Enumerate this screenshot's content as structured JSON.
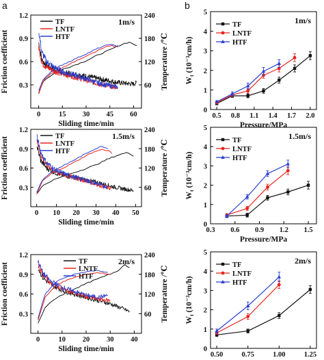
{
  "figure": {
    "panel_letters": [
      "a",
      "b"
    ]
  },
  "chart_data": [
    {
      "id": "a1",
      "type": "line",
      "speed_label": "1m/s",
      "xlabel": "Sliding time/min",
      "ylabel_left": "Friction coefficient",
      "ylabel_right": "Temperature /℃",
      "xlim": [
        -5,
        65
      ],
      "ylim_left": [
        0.0,
        1.2
      ],
      "ylim_right": [
        0,
        240
      ],
      "xticks": [
        0,
        15,
        30,
        45,
        60
      ],
      "yticks_left": [
        "0.3",
        "0.6",
        "0.9",
        "1.2"
      ],
      "yticks_left_values": [
        0.3,
        0.6,
        0.9,
        1.2
      ],
      "yticks_right": [
        "60",
        "120",
        "180",
        "240"
      ],
      "yticks_right_values": [
        60,
        120,
        180,
        240
      ],
      "legend": [
        "TF",
        "LNTF",
        "HTF"
      ],
      "legend_position": "top-left",
      "series": [
        {
          "name": "TF",
          "color": "#111111",
          "end": 62,
          "friction_x": [
            0,
            2,
            5,
            10,
            15,
            20,
            25,
            30,
            35,
            40,
            45,
            50,
            55,
            60,
            62
          ],
          "friction_y": [
            0.85,
            0.62,
            0.55,
            0.5,
            0.46,
            0.44,
            0.43,
            0.41,
            0.39,
            0.37,
            0.35,
            0.33,
            0.32,
            0.31,
            0.33
          ],
          "temp_x": [
            0,
            3,
            8,
            15,
            22,
            30,
            38,
            45,
            50,
            55,
            58,
            62
          ],
          "temp_y": [
            40,
            70,
            85,
            100,
            110,
            122,
            138,
            150,
            160,
            168,
            170,
            160
          ]
        },
        {
          "name": "LNTF",
          "color": "#e8231e",
          "end": 49,
          "friction_x": [
            0,
            2,
            5,
            10,
            15,
            20,
            25,
            30,
            35,
            40,
            45,
            49
          ],
          "friction_y": [
            0.8,
            0.58,
            0.53,
            0.48,
            0.44,
            0.42,
            0.39,
            0.36,
            0.33,
            0.3,
            0.28,
            0.27
          ],
          "temp_x": [
            0,
            3,
            8,
            15,
            22,
            30,
            38,
            45,
            49
          ],
          "temp_y": [
            35,
            72,
            90,
            105,
            118,
            135,
            150,
            162,
            158
          ]
        },
        {
          "name": "HTF",
          "color": "#2b3fd1",
          "end": 50,
          "friction_x": [
            0,
            2,
            5,
            10,
            15,
            20,
            25,
            30,
            35,
            40,
            45,
            50
          ],
          "friction_y": [
            1.0,
            0.72,
            0.6,
            0.52,
            0.47,
            0.44,
            0.41,
            0.38,
            0.34,
            0.31,
            0.29,
            0.27
          ],
          "temp_x": [
            0,
            3,
            8,
            15,
            22,
            30,
            38,
            45,
            50
          ],
          "temp_y": [
            45,
            75,
            95,
            112,
            125,
            140,
            155,
            165,
            158
          ]
        }
      ]
    },
    {
      "id": "a2",
      "type": "line",
      "speed_label": "1.5m/s",
      "xlabel": "Sliding time/min",
      "ylabel_left": "Friction coefficient",
      "ylabel_right": "Temperature /℃",
      "xlim": [
        -3,
        53
      ],
      "ylim_left": [
        0.0,
        1.2
      ],
      "ylim_right": [
        0,
        240
      ],
      "xticks": [
        0,
        10,
        20,
        30,
        40,
        50
      ],
      "yticks_left": [
        "0.3",
        "0.6",
        "0.9",
        "1.2"
      ],
      "yticks_left_values": [
        0.3,
        0.6,
        0.9,
        1.2
      ],
      "yticks_right": [
        "60",
        "120",
        "180",
        "240"
      ],
      "yticks_right_values": [
        60,
        120,
        180,
        240
      ],
      "legend": [
        "TF",
        "LNTF",
        "HTF"
      ],
      "legend_position": "top-left",
      "series": [
        {
          "name": "TF",
          "color": "#111111",
          "end": 49,
          "friction_x": [
            0,
            2,
            5,
            10,
            15,
            20,
            25,
            30,
            35,
            40,
            45,
            49
          ],
          "friction_y": [
            0.95,
            0.72,
            0.6,
            0.52,
            0.48,
            0.45,
            0.41,
            0.38,
            0.34,
            0.3,
            0.27,
            0.25
          ],
          "temp_x": [
            0,
            3,
            8,
            15,
            22,
            30,
            36,
            42,
            46,
            49
          ],
          "temp_y": [
            40,
            65,
            82,
            98,
            112,
            130,
            148,
            162,
            168,
            158
          ]
        },
        {
          "name": "LNTF",
          "color": "#e8231e",
          "end": 38,
          "friction_x": [
            0,
            2,
            5,
            10,
            15,
            20,
            25,
            30,
            35,
            38
          ],
          "friction_y": [
            1.05,
            0.8,
            0.65,
            0.54,
            0.48,
            0.44,
            0.4,
            0.35,
            0.3,
            0.28
          ],
          "temp_x": [
            0,
            3,
            8,
            15,
            22,
            28,
            33,
            37,
            38
          ],
          "temp_y": [
            40,
            80,
            105,
            125,
            148,
            168,
            178,
            172,
            165
          ]
        },
        {
          "name": "HTF",
          "color": "#2b3fd1",
          "end": 36,
          "friction_x": [
            0,
            2,
            5,
            10,
            15,
            20,
            25,
            30,
            36
          ],
          "friction_y": [
            1.1,
            0.85,
            0.68,
            0.56,
            0.5,
            0.45,
            0.41,
            0.36,
            0.3
          ],
          "temp_x": [
            0,
            3,
            8,
            15,
            22,
            28,
            33,
            36
          ],
          "temp_y": [
            45,
            85,
            110,
            132,
            155,
            175,
            188,
            180
          ]
        }
      ]
    },
    {
      "id": "a3",
      "type": "line",
      "speed_label": "2m/s",
      "xlabel": "Sliding time/min",
      "ylabel_left": "Friction coefficient",
      "ylabel_right": "Temperature /℃",
      "xlim": [
        -3,
        43
      ],
      "ylim_left": [
        0.0,
        1.2
      ],
      "ylim_right": [
        0,
        240
      ],
      "xticks": [
        0,
        10,
        20,
        30,
        40
      ],
      "yticks_left": [
        "0.3",
        "0.6",
        "0.9",
        "1.2"
      ],
      "yticks_left_values": [
        0.3,
        0.6,
        0.9,
        1.2
      ],
      "yticks_right": [
        "60",
        "120",
        "180",
        "240"
      ],
      "yticks_right_values": [
        60,
        120,
        180,
        240
      ],
      "legend": [
        "TF",
        "LNTF",
        "HTF"
      ],
      "legend_position": "top-center",
      "series": [
        {
          "name": "TF",
          "color": "#111111",
          "end": 38,
          "friction_x": [
            0,
            2,
            5,
            10,
            15,
            20,
            25,
            30,
            35,
            38
          ],
          "friction_y": [
            1.0,
            0.85,
            0.75,
            0.66,
            0.6,
            0.55,
            0.5,
            0.45,
            0.38,
            0.33
          ],
          "temp_x": [
            0,
            3,
            8,
            15,
            22,
            28,
            33,
            36,
            38
          ],
          "temp_y": [
            30,
            80,
            110,
            135,
            158,
            175,
            190,
            210,
            200
          ]
        },
        {
          "name": "LNTF",
          "color": "#e8231e",
          "end": 30,
          "friction_x": [
            0,
            2,
            5,
            10,
            15,
            20,
            25,
            30
          ],
          "friction_y": [
            1.05,
            0.9,
            0.78,
            0.68,
            0.62,
            0.56,
            0.52,
            0.5
          ],
          "temp_x": [
            0,
            3,
            8,
            15,
            20,
            25,
            30
          ],
          "temp_y": [
            40,
            110,
            150,
            170,
            180,
            185,
            180
          ]
        },
        {
          "name": "HTF",
          "color": "#2b3fd1",
          "end": 29,
          "friction_x": [
            0,
            2,
            5,
            10,
            15,
            20,
            25,
            29
          ],
          "friction_y": [
            1.1,
            0.92,
            0.8,
            0.7,
            0.64,
            0.58,
            0.55,
            0.58
          ],
          "temp_x": [
            0,
            3,
            8,
            15,
            20,
            25,
            29
          ],
          "temp_y": [
            45,
            120,
            160,
            180,
            188,
            192,
            185
          ]
        }
      ]
    },
    {
      "id": "b1",
      "type": "line",
      "speed_label": "1m/s",
      "xlabel": "Pressure/MPa",
      "ylabel_main": "W",
      "ylabel_sub": "t",
      "ylabel_units": "(10⁻³cm/h)",
      "xlim": [
        0.4,
        2.1
      ],
      "ylim": [
        0,
        5
      ],
      "xticks": [
        "0.5",
        "0.8",
        "1.1",
        "1.4",
        "1.7",
        "2.0"
      ],
      "xtick_values": [
        0.5,
        0.8,
        1.1,
        1.4,
        1.7,
        2.0
      ],
      "yticks": [
        0,
        1,
        2,
        3,
        4,
        5
      ],
      "legend": [
        "TF",
        "LNTF",
        "HTF"
      ],
      "legend_position": "top-left",
      "series": [
        {
          "name": "TF",
          "color": "#111111",
          "marker": "square",
          "x": [
            0.5,
            0.75,
            1.0,
            1.25,
            1.5,
            1.75,
            2.0
          ],
          "y": [
            0.3,
            0.7,
            0.7,
            0.95,
            1.5,
            2.1,
            2.75
          ],
          "err": [
            0.05,
            0.08,
            0.1,
            0.12,
            0.15,
            0.18,
            0.2
          ]
        },
        {
          "name": "LNTF",
          "color": "#e8231e",
          "marker": "circle",
          "x": [
            0.5,
            0.75,
            1.0,
            1.25,
            1.5,
            1.75
          ],
          "y": [
            0.35,
            0.75,
            0.95,
            1.75,
            2.1,
            2.65
          ],
          "err": [
            0.05,
            0.08,
            0.12,
            0.15,
            0.18,
            0.2
          ]
        },
        {
          "name": "HTF",
          "color": "#2b3fd1",
          "marker": "triangle",
          "x": [
            0.5,
            0.75,
            1.0,
            1.25,
            1.5
          ],
          "y": [
            0.4,
            0.8,
            1.2,
            1.95,
            2.35
          ],
          "err": [
            0.05,
            0.1,
            0.15,
            0.2,
            0.2
          ]
        }
      ]
    },
    {
      "id": "b2",
      "type": "line",
      "speed_label": "1.5m/s",
      "xlabel": "Pressure/MPa",
      "ylabel_main": "W",
      "ylabel_sub": "t",
      "ylabel_units": "(10⁻³cm/h)",
      "xlim": [
        0.3,
        1.6
      ],
      "ylim": [
        0,
        5
      ],
      "xticks": [
        "0.3",
        "0.6",
        "0.9",
        "1.2",
        "1.5"
      ],
      "xtick_values": [
        0.3,
        0.6,
        0.9,
        1.2,
        1.5
      ],
      "yticks": [
        0,
        1,
        2,
        3,
        4,
        5
      ],
      "legend": [
        "TF",
        "LNTF",
        "HTF"
      ],
      "legend_position": "top-left",
      "series": [
        {
          "name": "TF",
          "color": "#111111",
          "marker": "square",
          "x": [
            0.5,
            0.75,
            1.0,
            1.25,
            1.5
          ],
          "y": [
            0.4,
            0.45,
            1.35,
            1.65,
            2.0
          ],
          "err": [
            0.08,
            0.1,
            0.12,
            0.15,
            0.2
          ]
        },
        {
          "name": "LNTF",
          "color": "#e8231e",
          "marker": "circle",
          "x": [
            0.5,
            0.75,
            1.0,
            1.25
          ],
          "y": [
            0.45,
            0.8,
            1.9,
            2.75
          ],
          "err": [
            0.08,
            0.1,
            0.15,
            0.2
          ]
        },
        {
          "name": "HTF",
          "color": "#2b3fd1",
          "marker": "triangle",
          "x": [
            0.5,
            0.75,
            1.0,
            1.25
          ],
          "y": [
            0.4,
            1.4,
            2.6,
            3.1
          ],
          "err": [
            0.08,
            0.12,
            0.15,
            0.2
          ]
        }
      ]
    },
    {
      "id": "b3",
      "type": "line",
      "speed_label": "2m/s",
      "xlabel": "Pressure/MPa",
      "ylabel_main": "W",
      "ylabel_sub": "t",
      "ylabel_units": "(10⁻³cm/h)",
      "xlim": [
        0.45,
        1.3
      ],
      "ylim": [
        0,
        5
      ],
      "xticks": [
        "0.50",
        "0.75",
        "1.00",
        "1.25"
      ],
      "xtick_values": [
        0.5,
        0.75,
        1.0,
        1.25
      ],
      "yticks": [
        0,
        1,
        2,
        3,
        4,
        5
      ],
      "legend": [
        "TF",
        "LNTF",
        "HTF"
      ],
      "legend_position": "top-left",
      "series": [
        {
          "name": "TF",
          "color": "#111111",
          "marker": "square",
          "x": [
            0.5,
            0.75,
            1.0,
            1.25
          ],
          "y": [
            0.7,
            0.9,
            1.7,
            3.05
          ],
          "err": [
            0.08,
            0.1,
            0.15,
            0.2
          ]
        },
        {
          "name": "LNTF",
          "color": "#e8231e",
          "marker": "circle",
          "x": [
            0.5,
            0.75,
            1.0
          ],
          "y": [
            0.8,
            1.65,
            3.3
          ],
          "err": [
            0.08,
            0.15,
            0.2
          ]
        },
        {
          "name": "HTF",
          "color": "#2b3fd1",
          "marker": "triangle",
          "x": [
            0.5,
            0.75,
            1.0
          ],
          "y": [
            0.9,
            2.2,
            3.7
          ],
          "err": [
            0.1,
            0.2,
            0.25
          ]
        }
      ]
    }
  ]
}
